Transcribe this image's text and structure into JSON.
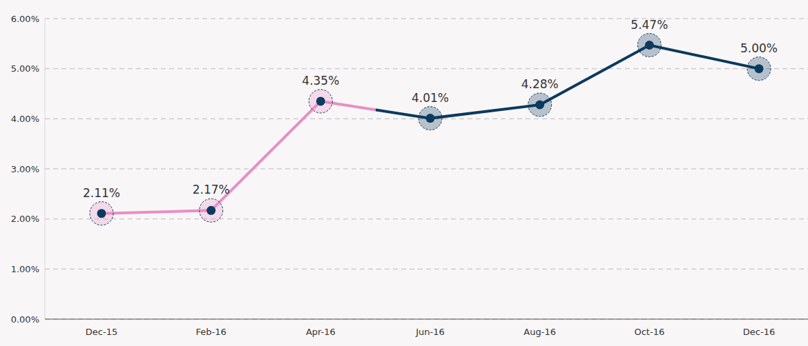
{
  "chart_data": {
    "type": "line",
    "categories": [
      "Dec-15",
      "Feb-16",
      "Apr-16",
      "Jun-16",
      "Aug-16",
      "Oct-16",
      "Dec-16"
    ],
    "values": [
      2.11,
      2.17,
      4.35,
      4.01,
      4.28,
      5.47,
      5.0
    ],
    "value_labels": [
      "2.11%",
      "2.17%",
      "4.35%",
      "4.01%",
      "4.28%",
      "5.47%",
      "5.00%"
    ],
    "colors": [
      "#e88ec6",
      "#e88ec6",
      "#e88ec6",
      "#0b3a5e",
      "#0b3a5e",
      "#0b3a5e",
      "#0b3a5e"
    ],
    "ylim": [
      0,
      6
    ],
    "yticks": [
      {
        "value": 0,
        "label": "0.00%"
      },
      {
        "value": 1,
        "label": "1.00%"
      },
      {
        "value": 2,
        "label": "2.00%"
      },
      {
        "value": 3,
        "label": "3.00%"
      },
      {
        "value": 4,
        "label": "4.00%"
      },
      {
        "value": 5,
        "label": "5.00%"
      },
      {
        "value": 6,
        "label": "6.00%"
      }
    ],
    "grid": true,
    "data_labels": true,
    "marker": "circle"
  }
}
